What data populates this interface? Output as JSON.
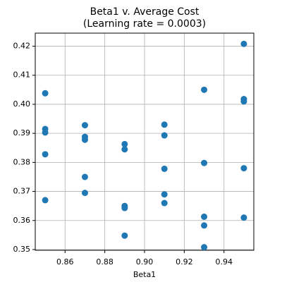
{
  "chart_data": {
    "type": "scatter",
    "title": "Beta1 v. Average Cost",
    "subtitle": "(Learning rate = 0.0003)",
    "x_label": "Beta1",
    "color": "#1f77b4",
    "grid": true,
    "x": [
      0.85,
      0.85,
      0.85,
      0.85,
      0.85,
      0.87,
      0.87,
      0.87,
      0.87,
      0.87,
      0.89,
      0.89,
      0.89,
      0.89,
      0.89,
      0.91,
      0.91,
      0.91,
      0.91,
      0.91,
      0.93,
      0.93,
      0.93,
      0.93,
      0.93,
      0.95,
      0.95,
      0.95,
      0.95,
      0.95
    ],
    "values": [
      0.4038,
      0.3915,
      0.3903,
      0.3828,
      0.367,
      0.3928,
      0.3888,
      0.3878,
      0.375,
      0.3695,
      0.3863,
      0.3845,
      0.365,
      0.3643,
      0.3548,
      0.393,
      0.3893,
      0.3778,
      0.369,
      0.366,
      0.405,
      0.3798,
      0.3613,
      0.3583,
      0.3508,
      0.4208,
      0.4018,
      0.401,
      0.378,
      0.361
    ],
    "xlim": [
      0.845,
      0.955
    ],
    "xticks": [
      0.86,
      0.88,
      {
        "value": 0.9,
        "label": "0.90"
      },
      0.92,
      0.94
    ],
    "ylim": [
      0.34975,
      0.4245
    ],
    "yticks": [
      0.35,
      0.36,
      0.37,
      0.38,
      0.39,
      {
        "value": 0.4,
        "label": "0.40"
      },
      0.41,
      0.42
    ]
  }
}
